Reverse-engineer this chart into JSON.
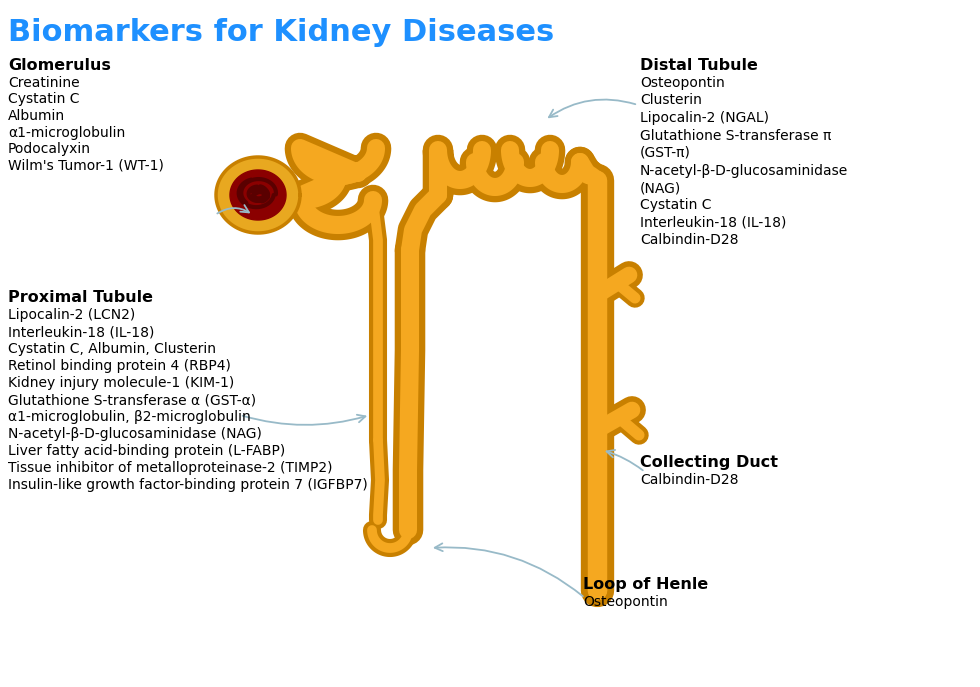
{
  "title": "Biomarkers for Kidney Diseases",
  "title_color": "#1E90FF",
  "title_fontsize": 22,
  "background_color": "#FFFFFF",
  "glomerulus_header": "Glomerulus",
  "glomerulus_items": [
    "Creatinine",
    "Cystatin C",
    "Albumin",
    "α1-microglobulin",
    "Podocalyxin",
    "Wilm's Tumor-1 (WT-1)"
  ],
  "proximal_header": "Proximal Tubule",
  "proximal_items": [
    "Lipocalin-2 (LCN2)",
    "Interleukin-18 (IL-18)",
    "Cystatin C, Albumin, Clusterin",
    "Retinol binding protein 4 (RBP4)",
    "Kidney injury molecule-1 (KIM-1)",
    "Glutathione S-transferase α (GST-α)",
    "α1-microglobulin, β2-microglobulin",
    "N-acetyl-β-D-glucosaminidase (NAG)",
    "Liver fatty acid-binding protein (L-FABP)",
    "Tissue inhibitor of metalloproteinase-2 (TIMP2)",
    "Insulin-like growth factor-binding protein 7 (IGFBP7)"
  ],
  "distal_header": "Distal Tubule",
  "distal_items": [
    "Osteopontin",
    "Clusterin",
    "Lipocalin-2 (NGAL)",
    "Glutathione S-transferase π",
    "(GST-π)",
    "N-acetyl-β-D-glucosaminidase",
    "(NAG)",
    "Cystatin C",
    "Interleukin-18 (IL-18)",
    "Calbindin-D28"
  ],
  "collecting_header": "Collecting Duct",
  "collecting_items": [
    "Calbindin-D28"
  ],
  "henle_header": "Loop of Henle",
  "henle_items": [
    "Osteopontin"
  ],
  "tubule_color": "#F5A820",
  "tubule_outline": "#C88000",
  "arrow_color": "#98BAC8"
}
